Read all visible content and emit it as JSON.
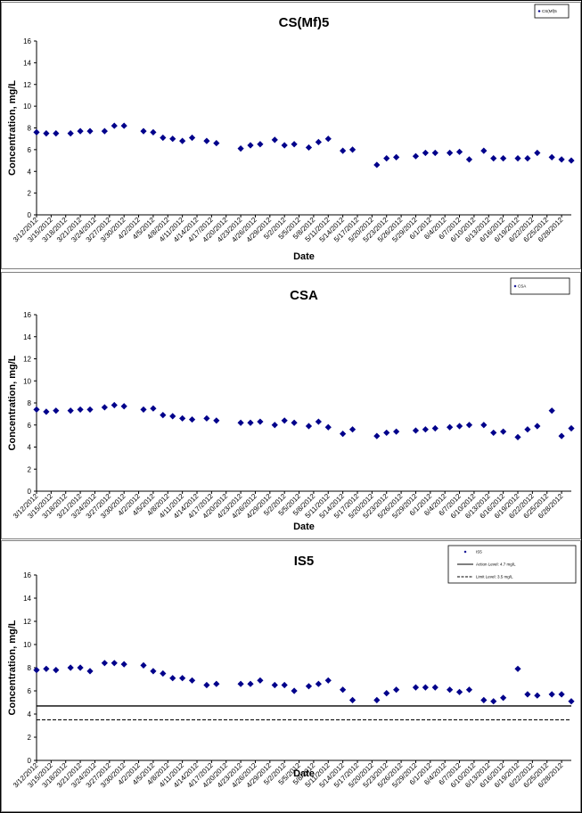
{
  "colors": {
    "marker": "#00008B",
    "frame": "#7f7f7f",
    "outer_frame": "#000000"
  },
  "chart_data": [
    {
      "type": "scatter",
      "title": "CS(Mf)5",
      "xlabel": "Date",
      "ylabel": "Concentration, mg/L",
      "ylim": [
        0,
        16
      ],
      "yticks": [
        0,
        2,
        4,
        6,
        8,
        10,
        12,
        14,
        16
      ],
      "xrange": [
        "3/12/2012",
        "6/30/2012"
      ],
      "xticks": [
        "3/12/2012",
        "3/15/2012",
        "3/18/2012",
        "3/21/2012",
        "3/24/2012",
        "3/27/2012",
        "3/30/2012",
        "4/2/2012",
        "4/5/2012",
        "4/8/2012",
        "4/11/2012",
        "4/14/2012",
        "4/17/2012",
        "4/20/2012",
        "4/23/2012",
        "4/26/2012",
        "4/29/2012",
        "5/2/2012",
        "5/5/2012",
        "5/8/2012",
        "5/11/2012",
        "5/14/2012",
        "5/17/2012",
        "5/20/2012",
        "5/23/2012",
        "5/26/2012",
        "5/29/2012",
        "6/1/2012",
        "6/4/2012",
        "6/7/2012",
        "6/10/2012",
        "6/13/2012",
        "6/16/2012",
        "6/19/2012",
        "6/22/2012",
        "6/25/2012",
        "6/28/2012"
      ],
      "legend": {
        "position": "top-right",
        "entries": [
          "CS(Mf)5"
        ]
      },
      "series": [
        {
          "name": "CS(Mf)5",
          "marker": "diamond",
          "points": [
            {
              "x": "3/12/2012",
              "y": 7.6
            },
            {
              "x": "3/14/2012",
              "y": 7.5
            },
            {
              "x": "3/16/2012",
              "y": 7.5
            },
            {
              "x": "3/19/2012",
              "y": 7.5
            },
            {
              "x": "3/21/2012",
              "y": 7.7
            },
            {
              "x": "3/23/2012",
              "y": 7.7
            },
            {
              "x": "3/26/2012",
              "y": 7.7
            },
            {
              "x": "3/28/2012",
              "y": 8.2
            },
            {
              "x": "3/30/2012",
              "y": 8.2
            },
            {
              "x": "4/3/2012",
              "y": 7.7
            },
            {
              "x": "4/5/2012",
              "y": 7.6
            },
            {
              "x": "4/7/2012",
              "y": 7.1
            },
            {
              "x": "4/9/2012",
              "y": 7.0
            },
            {
              "x": "4/11/2012",
              "y": 6.8
            },
            {
              "x": "4/13/2012",
              "y": 7.1
            },
            {
              "x": "4/16/2012",
              "y": 6.8
            },
            {
              "x": "4/18/2012",
              "y": 6.6
            },
            {
              "x": "4/23/2012",
              "y": 6.1
            },
            {
              "x": "4/25/2012",
              "y": 6.4
            },
            {
              "x": "4/27/2012",
              "y": 6.5
            },
            {
              "x": "4/30/2012",
              "y": 6.9
            },
            {
              "x": "5/2/2012",
              "y": 6.4
            },
            {
              "x": "5/4/2012",
              "y": 6.5
            },
            {
              "x": "5/7/2012",
              "y": 6.2
            },
            {
              "x": "5/9/2012",
              "y": 6.7
            },
            {
              "x": "5/11/2012",
              "y": 7.0
            },
            {
              "x": "5/14/2012",
              "y": 5.9
            },
            {
              "x": "5/16/2012",
              "y": 6.0
            },
            {
              "x": "5/21/2012",
              "y": 4.6
            },
            {
              "x": "5/23/2012",
              "y": 5.2
            },
            {
              "x": "5/25/2012",
              "y": 5.3
            },
            {
              "x": "5/29/2012",
              "y": 5.4
            },
            {
              "x": "5/31/2012",
              "y": 5.7
            },
            {
              "x": "6/2/2012",
              "y": 5.7
            },
            {
              "x": "6/5/2012",
              "y": 5.7
            },
            {
              "x": "6/7/2012",
              "y": 5.8
            },
            {
              "x": "6/9/2012",
              "y": 5.1
            },
            {
              "x": "6/12/2012",
              "y": 5.9
            },
            {
              "x": "6/14/2012",
              "y": 5.2
            },
            {
              "x": "6/16/2012",
              "y": 5.2
            },
            {
              "x": "6/19/2012",
              "y": 5.2
            },
            {
              "x": "6/21/2012",
              "y": 5.2
            },
            {
              "x": "6/23/2012",
              "y": 5.7
            },
            {
              "x": "6/26/2012",
              "y": 5.3
            },
            {
              "x": "6/28/2012",
              "y": 5.1
            },
            {
              "x": "6/30/2012",
              "y": 5.0
            }
          ]
        }
      ]
    },
    {
      "type": "scatter",
      "title": "CSA",
      "xlabel": "Date",
      "ylabel": "Concentration, mg/L",
      "ylim": [
        0,
        16
      ],
      "yticks": [
        0,
        2,
        4,
        6,
        8,
        10,
        12,
        14,
        16
      ],
      "xrange": [
        "3/12/2012",
        "6/30/2012"
      ],
      "xticks": [
        "3/12/2012",
        "3/15/2012",
        "3/18/2012",
        "3/21/2012",
        "3/24/2012",
        "3/27/2012",
        "3/30/2012",
        "4/2/2012",
        "4/5/2012",
        "4/8/2012",
        "4/11/2012",
        "4/14/2012",
        "4/17/2012",
        "4/20/2012",
        "4/23/2012",
        "4/26/2012",
        "4/29/2012",
        "5/2/2012",
        "5/5/2012",
        "5/8/2012",
        "5/11/2012",
        "5/14/2012",
        "5/17/2012",
        "5/20/2012",
        "5/23/2012",
        "5/26/2012",
        "5/29/2012",
        "6/1/2012",
        "6/4/2012",
        "6/7/2012",
        "6/10/2012",
        "6/13/2012",
        "6/16/2012",
        "6/19/2012",
        "6/22/2012",
        "6/25/2012",
        "6/28/2012"
      ],
      "legend": {
        "position": "top-right",
        "entries": [
          "CSA"
        ]
      },
      "series": [
        {
          "name": "CSA",
          "marker": "diamond",
          "points": [
            {
              "x": "3/12/2012",
              "y": 7.4
            },
            {
              "x": "3/14/2012",
              "y": 7.2
            },
            {
              "x": "3/16/2012",
              "y": 7.3
            },
            {
              "x": "3/19/2012",
              "y": 7.3
            },
            {
              "x": "3/21/2012",
              "y": 7.4
            },
            {
              "x": "3/23/2012",
              "y": 7.4
            },
            {
              "x": "3/26/2012",
              "y": 7.6
            },
            {
              "x": "3/28/2012",
              "y": 7.8
            },
            {
              "x": "3/30/2012",
              "y": 7.7
            },
            {
              "x": "4/3/2012",
              "y": 7.4
            },
            {
              "x": "4/5/2012",
              "y": 7.5
            },
            {
              "x": "4/7/2012",
              "y": 6.9
            },
            {
              "x": "4/9/2012",
              "y": 6.8
            },
            {
              "x": "4/11/2012",
              "y": 6.6
            },
            {
              "x": "4/13/2012",
              "y": 6.5
            },
            {
              "x": "4/16/2012",
              "y": 6.6
            },
            {
              "x": "4/18/2012",
              "y": 6.4
            },
            {
              "x": "4/23/2012",
              "y": 6.2
            },
            {
              "x": "4/25/2012",
              "y": 6.2
            },
            {
              "x": "4/27/2012",
              "y": 6.3
            },
            {
              "x": "4/30/2012",
              "y": 6.0
            },
            {
              "x": "5/2/2012",
              "y": 6.4
            },
            {
              "x": "5/4/2012",
              "y": 6.2
            },
            {
              "x": "5/7/2012",
              "y": 5.9
            },
            {
              "x": "5/9/2012",
              "y": 6.3
            },
            {
              "x": "5/11/2012",
              "y": 5.8
            },
            {
              "x": "5/14/2012",
              "y": 5.2
            },
            {
              "x": "5/16/2012",
              "y": 5.6
            },
            {
              "x": "5/21/2012",
              "y": 5.0
            },
            {
              "x": "5/23/2012",
              "y": 5.3
            },
            {
              "x": "5/25/2012",
              "y": 5.4
            },
            {
              "x": "5/29/2012",
              "y": 5.5
            },
            {
              "x": "5/31/2012",
              "y": 5.6
            },
            {
              "x": "6/2/2012",
              "y": 5.7
            },
            {
              "x": "6/5/2012",
              "y": 5.8
            },
            {
              "x": "6/7/2012",
              "y": 5.9
            },
            {
              "x": "6/9/2012",
              "y": 6.0
            },
            {
              "x": "6/12/2012",
              "y": 6.0
            },
            {
              "x": "6/14/2012",
              "y": 5.3
            },
            {
              "x": "6/16/2012",
              "y": 5.4
            },
            {
              "x": "6/19/2012",
              "y": 4.9
            },
            {
              "x": "6/21/2012",
              "y": 5.6
            },
            {
              "x": "6/23/2012",
              "y": 5.9
            },
            {
              "x": "6/26/2012",
              "y": 7.3
            },
            {
              "x": "6/28/2012",
              "y": 5.0
            },
            {
              "x": "6/30/2012",
              "y": 5.7
            }
          ]
        }
      ]
    },
    {
      "type": "scatter",
      "title": "IS5",
      "xlabel": "Date",
      "ylabel": "Concentration, mg/L",
      "ylim": [
        0,
        16
      ],
      "yticks": [
        0,
        2,
        4,
        6,
        8,
        10,
        12,
        14,
        16
      ],
      "xrange": [
        "3/12/2012",
        "6/30/2012"
      ],
      "xticks": [
        "3/12/2012",
        "3/15/2012",
        "3/18/2012",
        "3/21/2012",
        "3/24/2012",
        "3/27/2012",
        "3/30/2012",
        "4/2/2012",
        "4/5/2012",
        "4/8/2012",
        "4/11/2012",
        "4/14/2012",
        "4/17/2012",
        "4/20/2012",
        "4/23/2012",
        "4/26/2012",
        "4/29/2012",
        "5/2/2012",
        "5/5/2012",
        "5/8/2012",
        "5/11/2012",
        "5/14/2012",
        "5/17/2012",
        "5/20/2012",
        "5/23/2012",
        "5/26/2012",
        "5/29/2012",
        "6/1/2012",
        "6/4/2012",
        "6/7/2012",
        "6/10/2012",
        "6/13/2012",
        "6/16/2012",
        "6/19/2012",
        "6/22/2012",
        "6/25/2012",
        "6/28/2012"
      ],
      "legend": {
        "position": "top-right",
        "entries": [
          "IS5",
          "Action Level: 4.7 mg/L",
          "Limit Level: 3.5 mg/L"
        ]
      },
      "reference_lines": [
        {
          "name": "Action Level: 4.7 mg/L",
          "y": 4.7,
          "style": "solid"
        },
        {
          "name": "Limit Level: 3.5 mg/L",
          "y": 3.5,
          "style": "dashed"
        }
      ],
      "series": [
        {
          "name": "IS5",
          "marker": "diamond",
          "points": [
            {
              "x": "3/12/2012",
              "y": 7.8
            },
            {
              "x": "3/14/2012",
              "y": 7.9
            },
            {
              "x": "3/16/2012",
              "y": 7.8
            },
            {
              "x": "3/19/2012",
              "y": 8.0
            },
            {
              "x": "3/21/2012",
              "y": 8.0
            },
            {
              "x": "3/23/2012",
              "y": 7.7
            },
            {
              "x": "3/26/2012",
              "y": 8.4
            },
            {
              "x": "3/28/2012",
              "y": 8.4
            },
            {
              "x": "3/30/2012",
              "y": 8.3
            },
            {
              "x": "4/3/2012",
              "y": 8.2
            },
            {
              "x": "4/5/2012",
              "y": 7.7
            },
            {
              "x": "4/7/2012",
              "y": 7.5
            },
            {
              "x": "4/9/2012",
              "y": 7.1
            },
            {
              "x": "4/11/2012",
              "y": 7.1
            },
            {
              "x": "4/13/2012",
              "y": 6.9
            },
            {
              "x": "4/16/2012",
              "y": 6.5
            },
            {
              "x": "4/18/2012",
              "y": 6.6
            },
            {
              "x": "4/23/2012",
              "y": 6.6
            },
            {
              "x": "4/25/2012",
              "y": 6.6
            },
            {
              "x": "4/27/2012",
              "y": 6.9
            },
            {
              "x": "4/30/2012",
              "y": 6.5
            },
            {
              "x": "5/2/2012",
              "y": 6.5
            },
            {
              "x": "5/4/2012",
              "y": 6.0
            },
            {
              "x": "5/7/2012",
              "y": 6.4
            },
            {
              "x": "5/9/2012",
              "y": 6.6
            },
            {
              "x": "5/11/2012",
              "y": 6.9
            },
            {
              "x": "5/14/2012",
              "y": 6.1
            },
            {
              "x": "5/16/2012",
              "y": 5.2
            },
            {
              "x": "5/21/2012",
              "y": 5.2
            },
            {
              "x": "5/23/2012",
              "y": 5.8
            },
            {
              "x": "5/25/2012",
              "y": 6.1
            },
            {
              "x": "5/29/2012",
              "y": 6.3
            },
            {
              "x": "5/31/2012",
              "y": 6.3
            },
            {
              "x": "6/2/2012",
              "y": 6.3
            },
            {
              "x": "6/5/2012",
              "y": 6.1
            },
            {
              "x": "6/7/2012",
              "y": 5.9
            },
            {
              "x": "6/9/2012",
              "y": 6.1
            },
            {
              "x": "6/12/2012",
              "y": 5.2
            },
            {
              "x": "6/14/2012",
              "y": 5.1
            },
            {
              "x": "6/16/2012",
              "y": 5.4
            },
            {
              "x": "6/19/2012",
              "y": 7.9
            },
            {
              "x": "6/21/2012",
              "y": 5.7
            },
            {
              "x": "6/23/2012",
              "y": 5.6
            },
            {
              "x": "6/26/2012",
              "y": 5.7
            },
            {
              "x": "6/28/2012",
              "y": 5.7
            },
            {
              "x": "6/30/2012",
              "y": 5.1
            }
          ]
        }
      ]
    }
  ]
}
